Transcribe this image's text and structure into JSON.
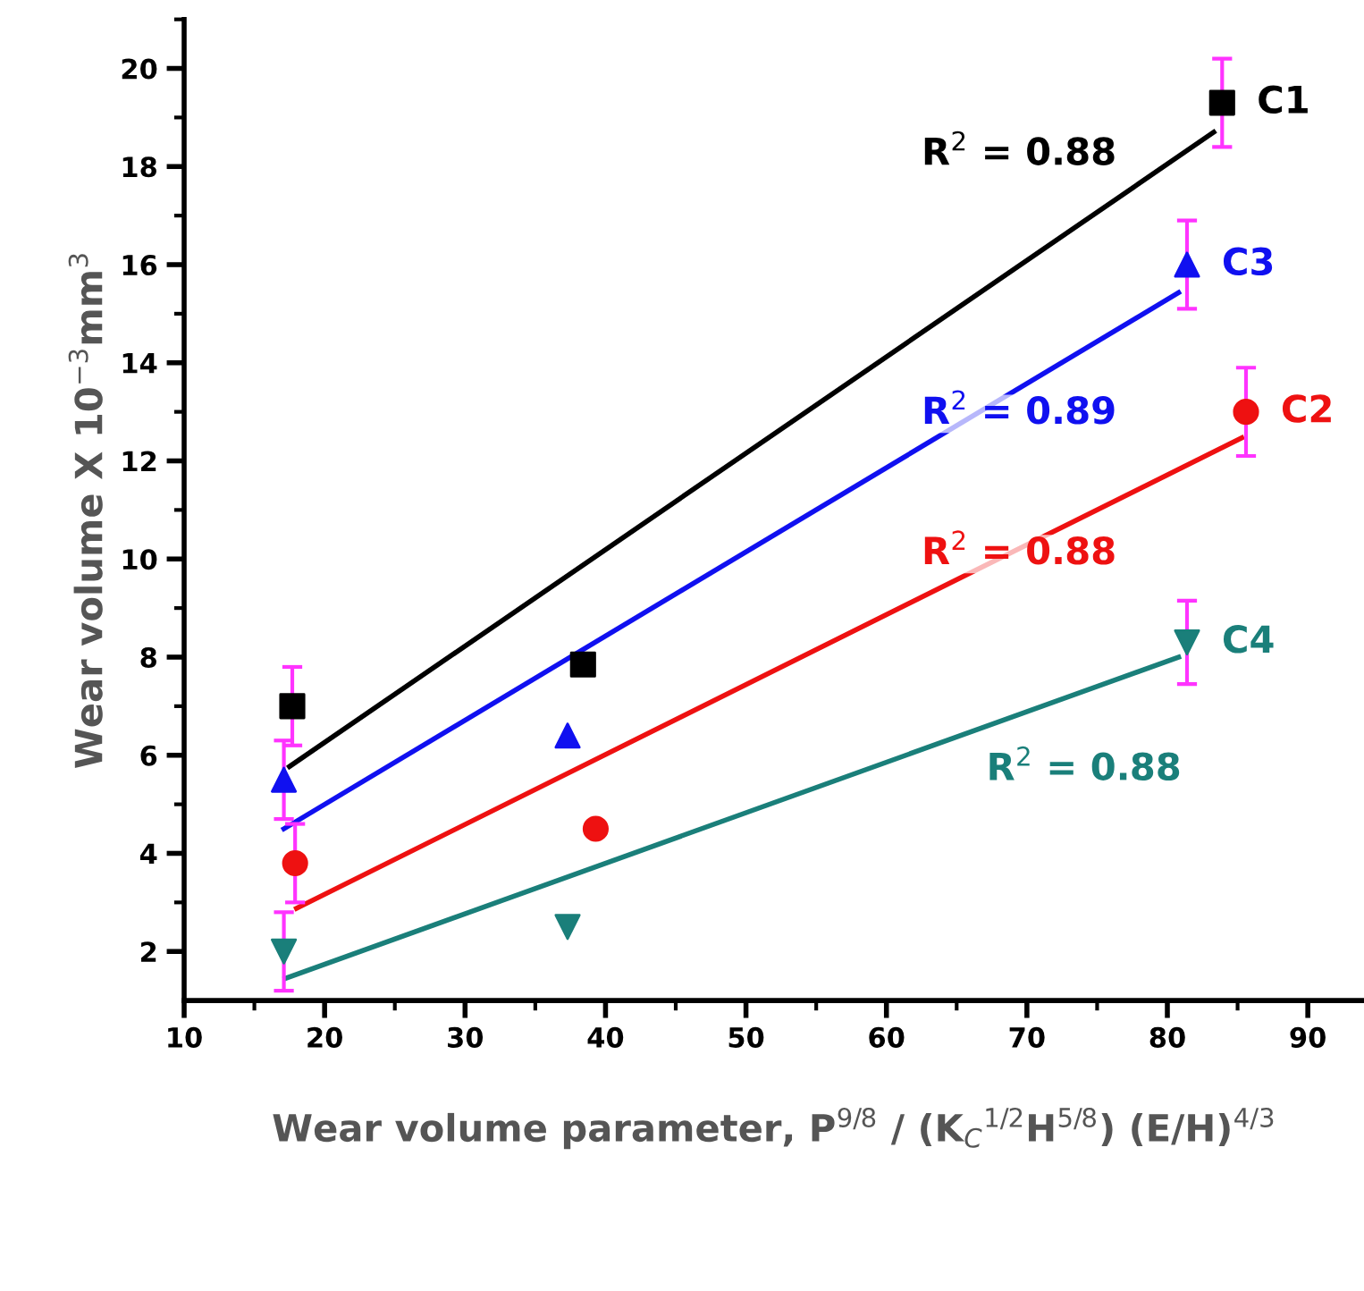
{
  "chart_data": {
    "type": "scatter",
    "xlabel": "Wear volume parameter, P$^{9/8}$ / (K$_{C}$$^{1/2}$H$^{5/8}$) (E/H)$^{4/3}$",
    "ylabel": "Wear volume X 10$^{−3}$mm$^{3}$",
    "xlim": [
      10,
      94
    ],
    "xticks": [
      10,
      20,
      30,
      40,
      50,
      60,
      70,
      80,
      90
    ],
    "ylim": [
      1,
      21
    ],
    "yticks": [
      2,
      4,
      6,
      8,
      10,
      12,
      14,
      16,
      18,
      20
    ],
    "grid": false,
    "legend": false,
    "series": [
      {
        "name": "C1",
        "color": "#000000",
        "marker": "square",
        "x": [
          17.7,
          38.4,
          83.9
        ],
        "values": [
          7.0,
          7.85,
          19.3
        ],
        "errors": [
          0.8,
          null,
          0.9
        ]
      },
      {
        "name": "C3",
        "color": "#1010f0",
        "marker": "triangle",
        "x": [
          17.1,
          37.3,
          81.4
        ],
        "values": [
          5.5,
          6.4,
          16.0
        ],
        "errors": [
          0.8,
          null,
          0.9
        ]
      },
      {
        "name": "C2",
        "color": "#ee1111",
        "marker": "circle",
        "x": [
          17.9,
          39.3,
          85.6
        ],
        "values": [
          3.8,
          4.5,
          13.0
        ],
        "errors": [
          0.8,
          null,
          0.9
        ]
      },
      {
        "name": "C4",
        "color": "#1a7f7a",
        "marker": "triangle_down",
        "x": [
          17.1,
          37.3,
          81.4
        ],
        "values": [
          2.0,
          2.5,
          8.3
        ],
        "errors": [
          0.8,
          null,
          0.85
        ]
      },
      {
        "type": "line",
        "color": "#000000",
        "x": [
          17.5,
          83.3
        ],
        "values": [
          5.77,
          18.7
        ]
      },
      {
        "type": "line",
        "color": "#1010f0",
        "x": [
          17.1,
          80.8
        ],
        "values": [
          4.5,
          15.43
        ]
      },
      {
        "type": "line",
        "color": "#ee1111",
        "x": [
          18.0,
          85.3
        ],
        "values": [
          2.88,
          12.47
        ]
      },
      {
        "type": "line",
        "color": "#1a7f7a",
        "x": [
          17.2,
          80.8
        ],
        "values": [
          1.45,
          8.0
        ]
      }
    ],
    "annotations": [
      "R$^{2}$ = 0.88",
      "R$^{2}$ = 0.89",
      "R$^{2}$ = 0.88",
      "R$^{2}$ = 0.88"
    ]
  }
}
